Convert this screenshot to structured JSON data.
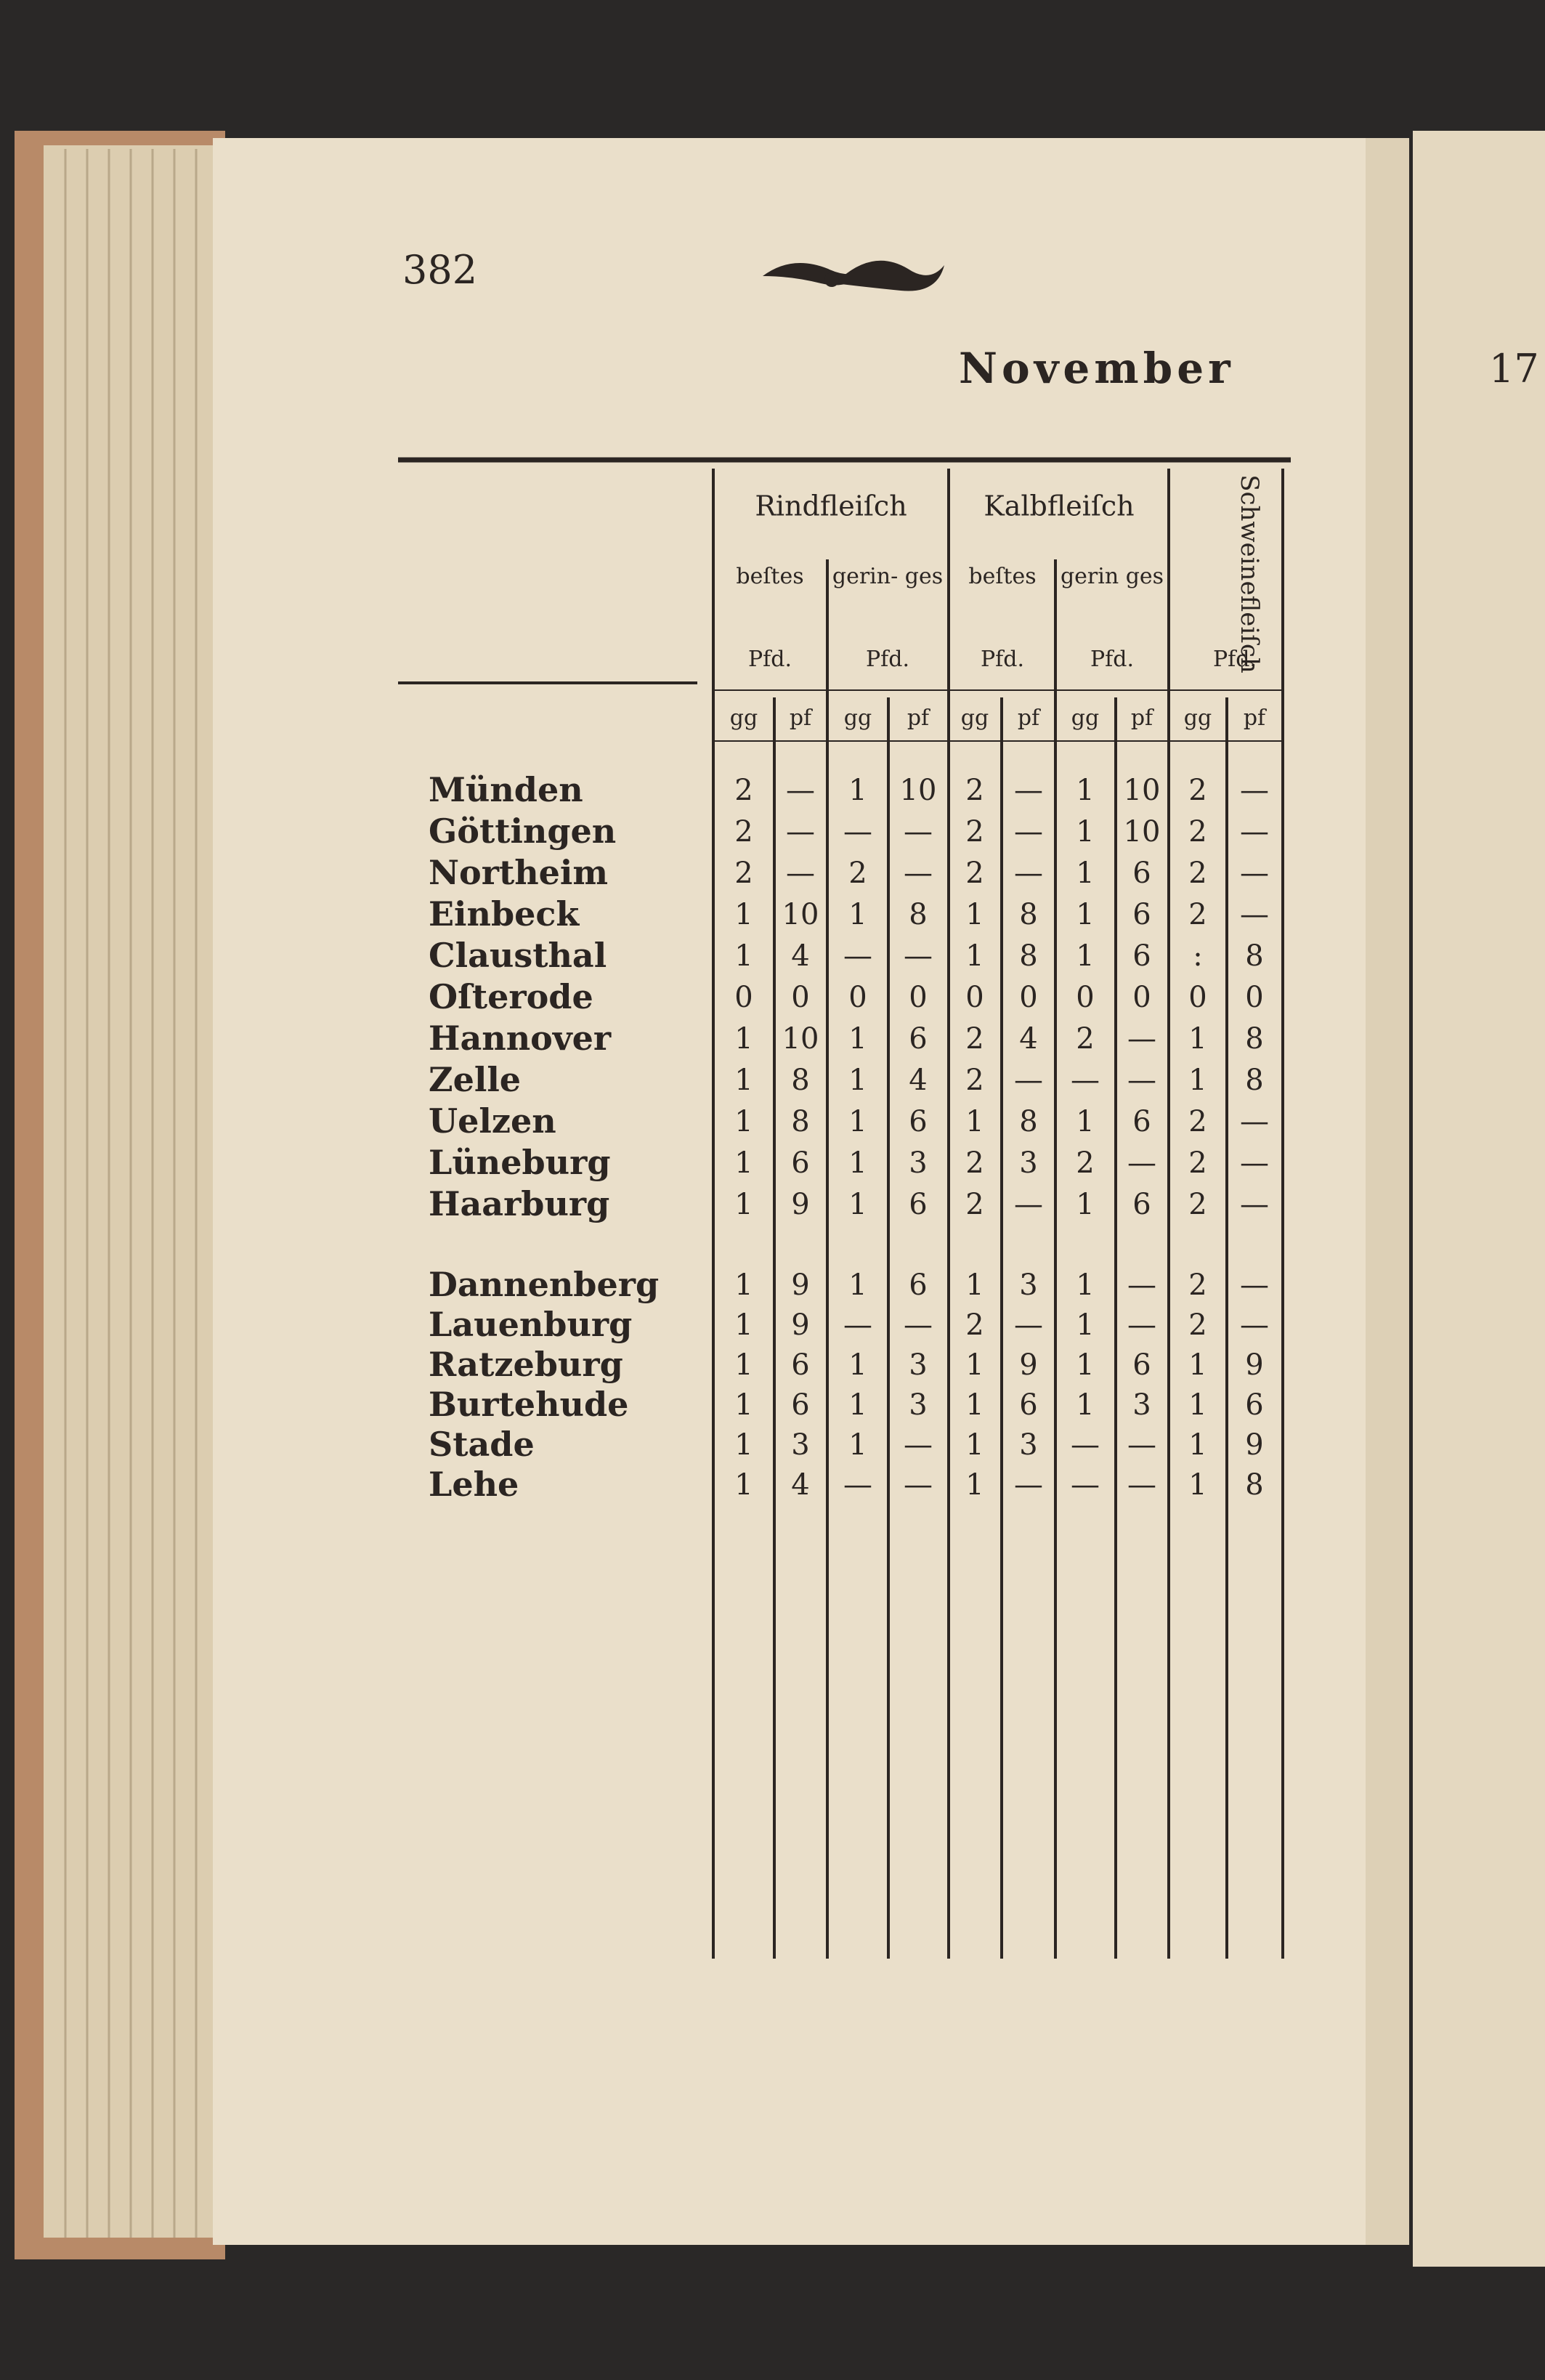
{
  "page_number": "382",
  "title": "November",
  "right_page_number": "17",
  "table": {
    "group_headers": [
      "Rindfleiſch",
      "Kalbfleiſch",
      "Schweinefleiſch"
    ],
    "sub_headers": [
      [
        "beſtes",
        "Pfd."
      ],
      [
        "gerin- ges",
        "Pfd."
      ],
      [
        "beſtes",
        "Pfd."
      ],
      [
        "gerin ges",
        "Pfd."
      ],
      [
        "Pfd."
      ]
    ],
    "unit_headers": [
      "gg",
      "pf",
      "gg",
      "pf",
      "gg",
      "pf",
      "gg",
      "pf",
      "gg",
      "pf"
    ],
    "rows": [
      {
        "name": "Münden",
        "values": [
          "2",
          "—",
          "1",
          "10",
          "2",
          "—",
          "1",
          "10",
          "2",
          "—"
        ]
      },
      {
        "name": "Göttingen",
        "values": [
          "2",
          "—",
          "—",
          "—",
          "2",
          "—",
          "1",
          "10",
          "2",
          "—"
        ]
      },
      {
        "name": "Northeim",
        "values": [
          "2",
          "—",
          "2",
          "—",
          "2",
          "—",
          "1",
          "6",
          "2",
          "—"
        ]
      },
      {
        "name": "Einbeck",
        "values": [
          "1",
          "10",
          "1",
          "8",
          "1",
          "8",
          "1",
          "6",
          "2",
          "—"
        ]
      },
      {
        "name": "Clausthal",
        "values": [
          "1",
          "4",
          "—",
          "—",
          "1",
          "8",
          "1",
          "6",
          ":",
          "8"
        ]
      },
      {
        "name": "Oſterode",
        "values": [
          "0",
          "0",
          "0",
          "0",
          "0",
          "0",
          "0",
          "0",
          "0",
          "0"
        ]
      },
      {
        "name": "Hannover",
        "values": [
          "1",
          "10",
          "1",
          "6",
          "2",
          "4",
          "2",
          "—",
          "1",
          "8"
        ]
      },
      {
        "name": "Zelle",
        "values": [
          "1",
          "8",
          "1",
          "4",
          "2",
          "—",
          "—",
          "—",
          "1",
          "8"
        ]
      },
      {
        "name": "Uelzen",
        "values": [
          "1",
          "8",
          "1",
          "6",
          "1",
          "8",
          "1",
          "6",
          "2",
          "—"
        ]
      },
      {
        "name": "Lüneburg",
        "values": [
          "1",
          "6",
          "1",
          "3",
          "2",
          "3",
          "2",
          "—",
          "2",
          "—"
        ]
      },
      {
        "name": "Haarburg",
        "values": [
          "1",
          "9",
          "1",
          "6",
          "2",
          "—",
          "1",
          "6",
          "2",
          "—"
        ]
      },
      {
        "name": "Dannenberg",
        "values": [
          "1",
          "9",
          "1",
          "6",
          "1",
          "3",
          "1",
          "—",
          "2",
          "—"
        ]
      },
      {
        "name": "Lauenburg",
        "values": [
          "1",
          "9",
          "—",
          "—",
          "2",
          "—",
          "1",
          "—",
          "2",
          "—"
        ]
      },
      {
        "name": "Ratzeburg",
        "values": [
          "1",
          "6",
          "1",
          "3",
          "1",
          "9",
          "1",
          "6",
          "1",
          "9"
        ]
      },
      {
        "name": "Burtehude",
        "values": [
          "1",
          "6",
          "1",
          "3",
          "1",
          "6",
          "1",
          "3",
          "1",
          "6"
        ]
      },
      {
        "name": "Stade",
        "values": [
          "1",
          "3",
          "1",
          "—",
          "1",
          "3",
          "—",
          "—",
          "1",
          "9"
        ]
      },
      {
        "name": "Lehe",
        "values": [
          "1",
          "4",
          "—",
          "—",
          "1",
          "—",
          "—",
          "—",
          "1",
          "8"
        ]
      }
    ]
  }
}
